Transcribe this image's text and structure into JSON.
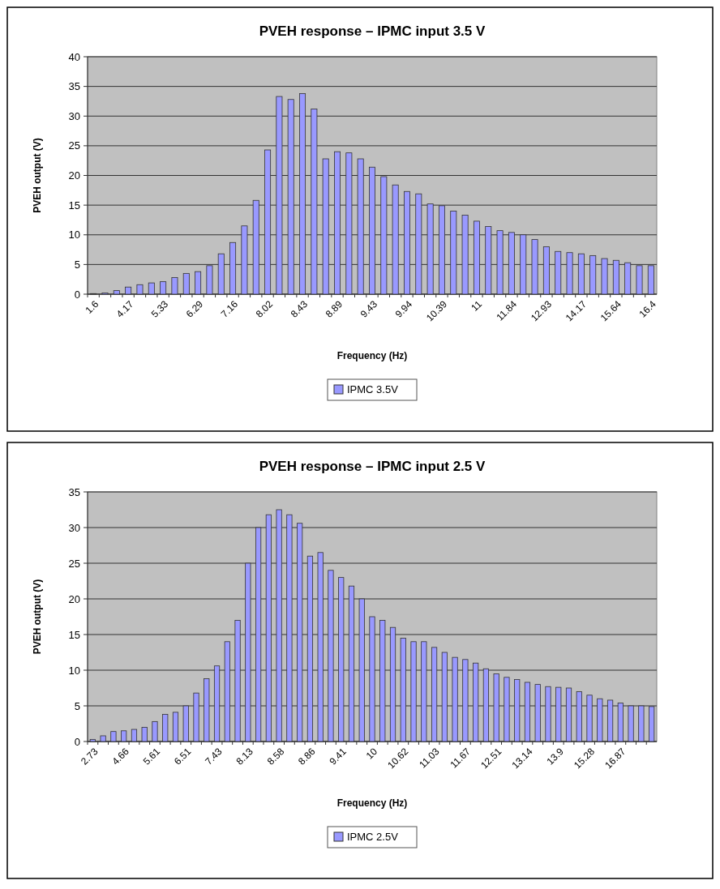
{
  "chart_data": [
    {
      "type": "bar",
      "title": "PVEH  response – IPMC input 3.5 V",
      "xlabel": "Frequency (Hz)",
      "ylabel": "PVEH output (V)",
      "categories": [
        "1.6",
        null,
        null,
        "4.17",
        null,
        null,
        "5.33",
        null,
        null,
        "6.29",
        null,
        null,
        "7.16",
        null,
        null,
        "8.02",
        null,
        null,
        "8.43",
        null,
        null,
        "8.89",
        null,
        null,
        "9.43",
        null,
        null,
        "9.94",
        null,
        null,
        "10.39",
        null,
        null,
        "11",
        null,
        null,
        "11.84",
        null,
        null,
        "12.93",
        null,
        null,
        "14.17",
        null,
        null,
        "15.64",
        null,
        null,
        "16.4"
      ],
      "series": [
        {
          "name": "IPMC 3.5V",
          "color": "#9999ff",
          "values": [
            0.1,
            0.2,
            0.6,
            1.2,
            1.6,
            1.9,
            2.1,
            2.8,
            3.5,
            3.8,
            4.8,
            6.8,
            8.7,
            11.5,
            15.8,
            24.3,
            33.3,
            32.8,
            33.8,
            31.2,
            22.8,
            24,
            23.8,
            22.8,
            21.4,
            19.8,
            18.4,
            17.3,
            16.9,
            15.2,
            14.9,
            14,
            13.3,
            12.3,
            11.4,
            10.7,
            10.4,
            10,
            9.2,
            8,
            7.2,
            7,
            6.8,
            6.5,
            6,
            5.7,
            5.3,
            4.8,
            4.8
          ]
        }
      ],
      "ylim": [
        0,
        40
      ],
      "yticks": [
        0,
        5,
        10,
        15,
        20,
        25,
        30,
        35,
        40
      ],
      "grid": "y",
      "legend": "bottom"
    },
    {
      "type": "bar",
      "title": "PVEH  response – IPMC input 2.5 V",
      "xlabel": "Frequency (Hz)",
      "ylabel": "PVEH output (V)",
      "categories": [
        "2.73",
        null,
        null,
        "4.66",
        null,
        null,
        "5.61",
        null,
        null,
        "6.51",
        null,
        null,
        "7.43",
        null,
        null,
        "8.13",
        null,
        null,
        "8.58",
        null,
        null,
        "8.86",
        null,
        null,
        "9.41",
        null,
        null,
        "10",
        null,
        null,
        "10.62",
        null,
        null,
        "11.03",
        null,
        null,
        "11.67",
        null,
        null,
        "12.51",
        null,
        null,
        "13.14",
        null,
        null,
        "13.9",
        null,
        null,
        "15.28",
        null,
        null,
        "16.87",
        null,
        null,
        null
      ],
      "series": [
        {
          "name": "IPMC 2.5V",
          "color": "#9999ff",
          "values": [
            0.3,
            0.8,
            1.4,
            1.5,
            1.7,
            2,
            2.8,
            3.8,
            4.1,
            5,
            6.8,
            8.8,
            10.6,
            14,
            17,
            25,
            30,
            31.8,
            32.5,
            31.8,
            30.6,
            26,
            26.5,
            24,
            23,
            21.8,
            20,
            17.5,
            17,
            16,
            14.5,
            14,
            14,
            13.2,
            12.5,
            11.8,
            11.5,
            11,
            10.2,
            9.5,
            9,
            8.7,
            8.3,
            8,
            7.7,
            7.6,
            7.5,
            7,
            6.5,
            6,
            5.8,
            5.4,
            5,
            5,
            4.9
          ]
        }
      ],
      "ylim": [
        0,
        35
      ],
      "yticks": [
        0,
        5,
        10,
        15,
        20,
        25,
        30,
        35
      ],
      "grid": "y",
      "legend": "bottom"
    }
  ]
}
